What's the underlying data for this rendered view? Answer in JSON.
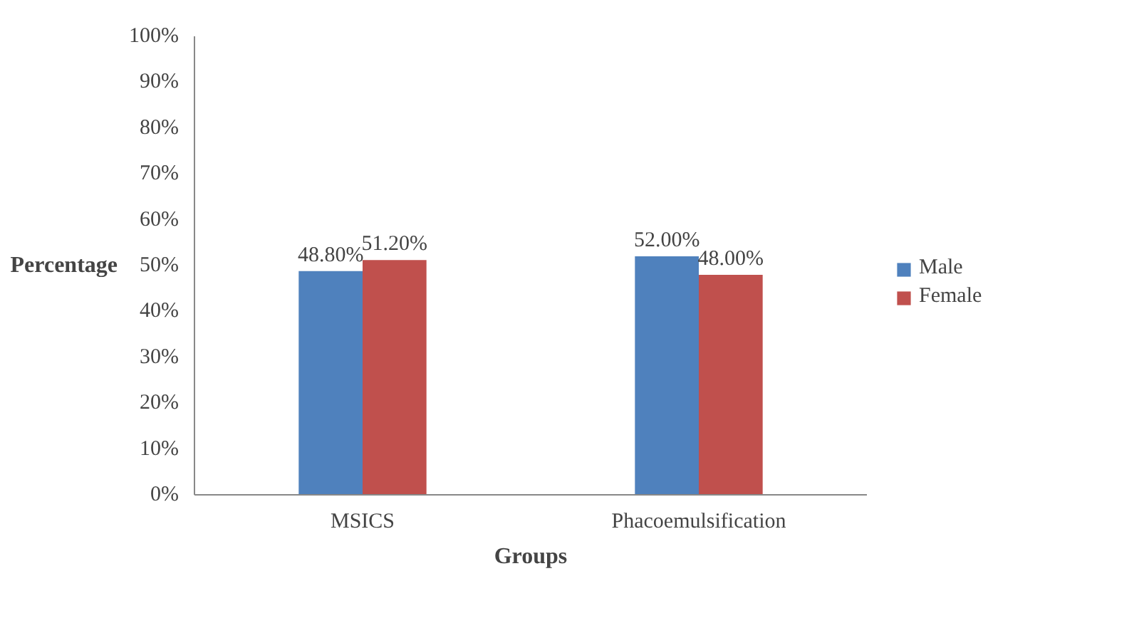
{
  "chart_data": {
    "type": "bar",
    "xlabel": "Groups",
    "ylabel": "Percentage",
    "categories": [
      "MSICS",
      "Phacoemulsification"
    ],
    "series": [
      {
        "name": "Male",
        "color": "#4f81bd",
        "values": [
          48.8,
          52.0
        ],
        "value_labels": [
          "48.80%",
          "52.00%"
        ]
      },
      {
        "name": "Female",
        "color": "#c0504d",
        "values": [
          51.2,
          48.0
        ],
        "value_labels": [
          "51.20%",
          "48.00%"
        ]
      }
    ],
    "ylim": [
      0,
      100
    ],
    "yticks": [
      {
        "value": 0,
        "label": "0%"
      },
      {
        "value": 10,
        "label": "10%"
      },
      {
        "value": 20,
        "label": "20%"
      },
      {
        "value": 30,
        "label": "30%"
      },
      {
        "value": 40,
        "label": "40%"
      },
      {
        "value": 50,
        "label": "50%"
      },
      {
        "value": 60,
        "label": "60%"
      },
      {
        "value": 70,
        "label": "70%"
      },
      {
        "value": 80,
        "label": "80%"
      },
      {
        "value": 90,
        "label": "90%"
      },
      {
        "value": 100,
        "label": "100%"
      }
    ],
    "grid": false,
    "legend": "right"
  }
}
